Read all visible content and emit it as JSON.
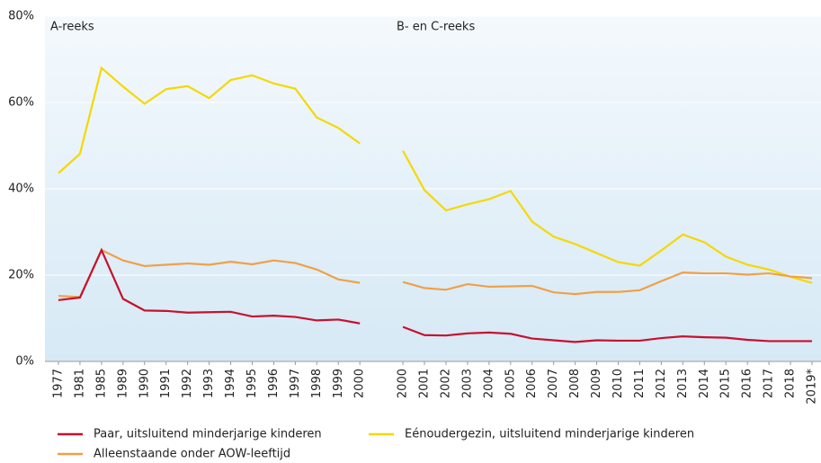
{
  "chart_data": {
    "type": "line",
    "annotations": [
      "A-reeks",
      "B- en C-reeks"
    ],
    "categories": [
      "1977",
      "1981",
      "1985",
      "1989",
      "1990",
      "1991",
      "1992",
      "1993",
      "1994",
      "1995",
      "1996",
      "1997",
      "1998",
      "1999",
      "2000",
      null,
      "2000",
      "2001",
      "2002",
      "2003",
      "2004",
      "2005",
      "2006",
      "2007",
      "2008",
      "2009",
      "2010",
      "2011",
      "2012",
      "2013",
      "2014",
      "2015",
      "2016",
      "2017",
      "2018",
      "2019*"
    ],
    "series": [
      {
        "name": "Paar, uitsluitend minderjarige kinderen",
        "color": "#c8102e",
        "values": [
          14.2,
          14.8,
          25.8,
          14.5,
          11.8,
          11.7,
          11.3,
          11.4,
          11.5,
          10.4,
          10.6,
          10.3,
          9.5,
          9.7,
          8.8,
          null,
          8.0,
          6.1,
          6.0,
          6.5,
          6.7,
          6.4,
          5.3,
          4.9,
          4.5,
          4.9,
          4.8,
          4.8,
          5.4,
          5.8,
          5.6,
          5.5,
          5.0,
          4.7,
          4.7,
          4.7
        ]
      },
      {
        "name": "Eénoudergezin, uitsluitend minderjarige kinderen",
        "color": "#f5d800",
        "values": [
          43.6,
          48.1,
          68.0,
          63.7,
          59.7,
          63.1,
          63.8,
          61.0,
          65.2,
          66.3,
          64.4,
          63.2,
          56.5,
          54.1,
          50.5,
          null,
          48.8,
          39.7,
          35.0,
          36.4,
          37.6,
          39.5,
          32.4,
          28.9,
          27.2,
          25.1,
          23.0,
          22.2,
          25.7,
          29.4,
          27.6,
          24.3,
          22.4,
          21.3,
          19.6,
          18.2
        ]
      },
      {
        "name": "Alleenstaande onder AOW-leeftijd",
        "color": "#f0a048",
        "values": [
          15.2,
          14.9,
          25.8,
          23.4,
          22.1,
          22.4,
          22.7,
          22.4,
          23.1,
          22.5,
          23.4,
          22.8,
          21.3,
          19.0,
          18.2,
          null,
          18.4,
          17.0,
          16.6,
          17.9,
          17.3,
          17.4,
          17.5,
          16.0,
          15.6,
          16.1,
          16.1,
          16.5,
          18.6,
          20.6,
          20.4,
          20.4,
          20.1,
          20.4,
          19.7,
          19.3
        ]
      }
    ],
    "ylim": [
      0,
      80
    ],
    "yticks": [
      {
        "value": 0,
        "label": "0%"
      },
      {
        "value": 20,
        "label": "20%"
      },
      {
        "value": 40,
        "label": "40%"
      },
      {
        "value": 60,
        "label": "60%"
      },
      {
        "value": 80,
        "label": "80%"
      }
    ],
    "grid": true
  }
}
